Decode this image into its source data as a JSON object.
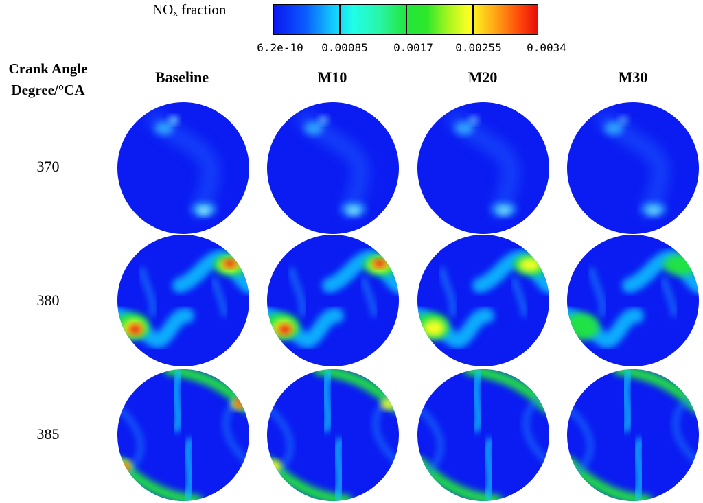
{
  "legend": {
    "title_main": "NO",
    "title_sub": "x",
    "title_rest": " fraction",
    "ticks": [
      "6.2e-10",
      "0.00085",
      "0.0017",
      "0.00255",
      "0.0034"
    ],
    "colors": [
      "#0b17f0",
      "#11c7ff",
      "#22e63d",
      "#ffff22",
      "#e80c0c"
    ]
  },
  "crank_label_line1": "Crank Angle",
  "crank_label_line2": "Degree/°CA",
  "columns": [
    "Baseline",
    "M10",
    "M20",
    "M30"
  ],
  "rows": [
    "370",
    "380",
    "385"
  ],
  "field_intensity": [
    [
      0.18,
      0.15,
      0.14,
      0.12
    ],
    [
      1.0,
      0.85,
      0.7,
      0.5
    ],
    [
      0.9,
      0.75,
      0.6,
      0.5
    ]
  ]
}
